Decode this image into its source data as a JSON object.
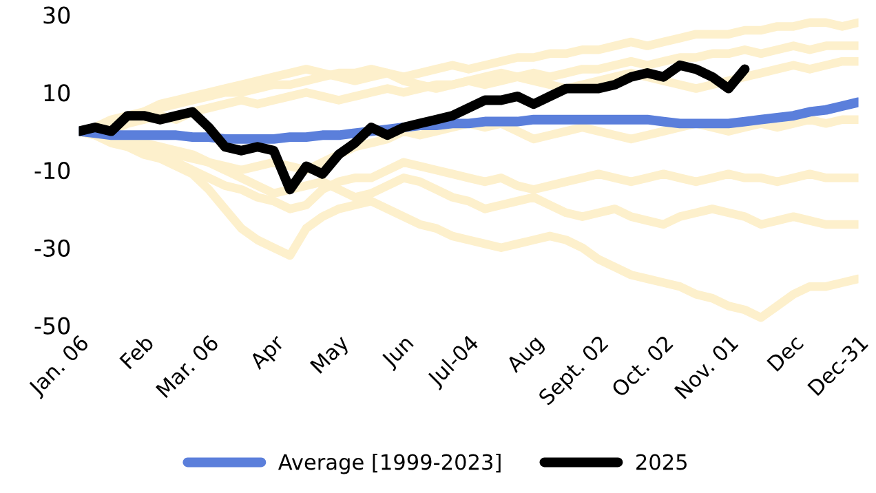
{
  "chart_data": {
    "type": "line",
    "categories": [
      "Jan. 06",
      null,
      null,
      null,
      "Feb",
      null,
      null,
      null,
      "Mar. 06",
      null,
      null,
      null,
      "Apr",
      null,
      null,
      null,
      "May",
      null,
      null,
      null,
      "Jun",
      null,
      null,
      null,
      "Jul-04",
      null,
      null,
      null,
      "Aug",
      null,
      null,
      null,
      "Sept. 02",
      null,
      null,
      null,
      "Oct. 02",
      null,
      null,
      null,
      "Nov. 01",
      null,
      null,
      null,
      "Dec",
      null,
      null,
      null,
      "Dec-31"
    ],
    "ylim": [
      -50,
      30
    ],
    "yticks": [
      -50,
      -30,
      -10,
      10,
      30
    ],
    "grid": false,
    "legend": "bottom",
    "marker": "none",
    "line_style": "solid",
    "series": [
      {
        "color": "#fdf0cc",
        "values": [
          0,
          1,
          2,
          3,
          5,
          6,
          7,
          8,
          9,
          10,
          10,
          11,
          12,
          12,
          13,
          14,
          15,
          15,
          16,
          15,
          14,
          15,
          16,
          17,
          16,
          17,
          18,
          19,
          19,
          20,
          20,
          21,
          21,
          22,
          23,
          22,
          23,
          24,
          25,
          25,
          25,
          26,
          26,
          27,
          27,
          28,
          28,
          27,
          28
        ]
      },
      {
        "color": "#fdf0cc",
        "values": [
          0,
          1,
          0,
          2,
          3,
          4,
          3,
          5,
          6,
          7,
          8,
          7,
          8,
          9,
          10,
          9,
          8,
          9,
          10,
          11,
          10,
          11,
          12,
          12,
          13,
          12,
          13,
          14,
          15,
          14,
          15,
          16,
          16,
          17,
          18,
          17,
          18,
          19,
          19,
          20,
          20,
          21,
          20,
          21,
          22,
          21,
          22,
          22,
          22
        ]
      },
      {
        "color": "#fdf0cc",
        "values": [
          0,
          -1,
          -2,
          -3,
          -4,
          -5,
          -6,
          -7,
          -8,
          -9,
          -10,
          -9,
          -8,
          -9,
          -10,
          -8,
          -6,
          -4,
          -3,
          -2,
          0,
          -1,
          0,
          1,
          2,
          1,
          2,
          0,
          -2,
          -1,
          0,
          1,
          0,
          -1,
          -2,
          -1,
          0,
          1,
          2,
          1,
          0,
          1,
          2,
          1,
          2,
          3,
          2,
          3,
          3
        ]
      },
      {
        "color": "#fdf0cc",
        "values": [
          0,
          -1,
          -3,
          -4,
          -6,
          -7,
          -8,
          -10,
          -12,
          -14,
          -15,
          -17,
          -18,
          -20,
          -19,
          -15,
          -13,
          -12,
          -12,
          -10,
          -8,
          -9,
          -10,
          -11,
          -12,
          -13,
          -12,
          -14,
          -15,
          -14,
          -13,
          -12,
          -11,
          -12,
          -13,
          -12,
          -11,
          -12,
          -13,
          -12,
          -11,
          -12,
          -12,
          -13,
          -12,
          -11,
          -12,
          -12,
          -12
        ]
      },
      {
        "color": "#fdf0cc",
        "values": [
          0,
          -1,
          -2,
          -3,
          -5,
          -7,
          -9,
          -11,
          -15,
          -20,
          -25,
          -28,
          -30,
          -32,
          -25,
          -22,
          -20,
          -19,
          -18,
          -20,
          -22,
          -24,
          -25,
          -27,
          -28,
          -29,
          -30,
          -29,
          -28,
          -27,
          -28,
          -30,
          -33,
          -35,
          -37,
          -38,
          -39,
          -40,
          -42,
          -43,
          -45,
          -46,
          -48,
          -45,
          -42,
          -40,
          -40,
          -39,
          -38
        ]
      },
      {
        "color": "#fdf0cc",
        "values": [
          0,
          -1,
          -2,
          -3,
          -3,
          -4,
          -5,
          -6,
          -8,
          -10,
          -12,
          -14,
          -16,
          -15,
          -14,
          -13,
          -15,
          -17,
          -16,
          -14,
          -12,
          -13,
          -15,
          -17,
          -18,
          -20,
          -19,
          -18,
          -17,
          -19,
          -21,
          -22,
          -21,
          -20,
          -22,
          -23,
          -24,
          -22,
          -21,
          -20,
          -21,
          -22,
          -24,
          -23,
          -22,
          -23,
          -24,
          -24,
          -24
        ]
      },
      {
        "color": "#fdf0cc",
        "values": [
          0,
          1,
          3,
          4,
          5,
          7,
          8,
          9,
          10,
          11,
          12,
          13,
          14,
          15,
          16,
          15,
          14,
          13,
          14,
          15,
          13,
          12,
          11,
          12,
          13,
          14,
          15,
          14,
          13,
          12,
          11,
          12,
          13,
          14,
          15,
          14,
          13,
          12,
          11,
          12,
          13,
          14,
          15,
          16,
          17,
          16,
          17,
          18,
          18
        ]
      },
      {
        "name": "Average [1999-2023]",
        "color": "#5b7fdb",
        "values": [
          0,
          -0.5,
          -1,
          -1,
          -1,
          -1,
          -1,
          -1.5,
          -1.5,
          -2,
          -2,
          -2,
          -2,
          -1.5,
          -1.5,
          -1,
          -1,
          -0.5,
          0,
          0.5,
          1,
          1.5,
          1.5,
          2,
          2,
          2.5,
          2.5,
          2.5,
          3,
          3,
          3,
          3,
          3,
          3,
          3,
          3,
          2.5,
          2,
          2,
          2,
          2,
          2.5,
          3,
          3.5,
          4,
          5,
          5.5,
          6.5,
          7.5
        ]
      },
      {
        "name": "2025",
        "color": "#000000",
        "values": [
          0,
          1,
          0,
          4,
          4,
          3,
          4,
          5,
          1,
          -4,
          -5,
          -4,
          -5,
          -15,
          -9,
          -11,
          -6,
          -3,
          1,
          -1,
          1,
          2,
          3,
          4,
          6,
          8,
          8,
          9,
          7,
          9,
          11,
          11,
          11,
          12,
          14,
          15,
          14,
          17,
          16,
          14,
          11,
          16,
          null,
          null,
          null,
          null,
          null,
          null,
          null
        ]
      }
    ]
  }
}
